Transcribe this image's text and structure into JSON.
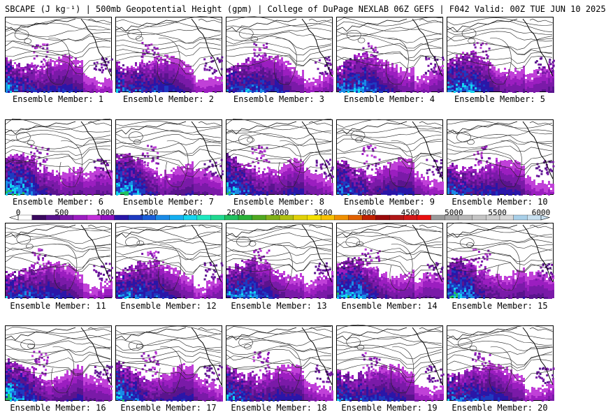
{
  "header": {
    "title": "SBCAPE (J kg⁻¹) | 500mb Geopotential Height (gpm) | College of DuPage NEXLAB 06Z GEFS | F042 Valid: 00Z TUE JUN 10 2025"
  },
  "colorbar": {
    "ticks": [
      "0",
      "500",
      "1000",
      "1500",
      "2000",
      "2500",
      "3000",
      "3500",
      "4000",
      "4500",
      "5000",
      "5500",
      "6000"
    ],
    "colors": [
      "#ffffff",
      "#3a0a5e",
      "#5a148e",
      "#7a1aa8",
      "#9b1ec0",
      "#c030d8",
      "#9010c0",
      "#2a16a8",
      "#1e3ac0",
      "#1a5ed8",
      "#1a8ae6",
      "#14aef0",
      "#14d4f0",
      "#1ee8c0",
      "#20d890",
      "#20c060",
      "#28b038",
      "#50a820",
      "#80b018",
      "#b0c010",
      "#e0d008",
      "#f4e000",
      "#f8c000",
      "#f09000",
      "#e06000",
      "#c02000",
      "#9a0a0a",
      "#b01818",
      "#d01818",
      "#e81010",
      "#9a9a9a",
      "#aaaaaa",
      "#b8b8b8",
      "#c4c4c4",
      "#cfcfcf",
      "#d8d8d8",
      "#a8cfe8",
      "#c8e0f0"
    ],
    "field_palette": [
      "#c040d8",
      "#9b1ec0",
      "#7a1aa8",
      "#5a148e",
      "#2a16a8",
      "#1e3ac0",
      "#1a8ae6",
      "#14d4f0",
      "#20c060"
    ]
  },
  "members": [
    {
      "label": "Ensemble Member: 1"
    },
    {
      "label": "Ensemble Member: 2"
    },
    {
      "label": "Ensemble Member: 3"
    },
    {
      "label": "Ensemble Member: 4"
    },
    {
      "label": "Ensemble Member: 5"
    },
    {
      "label": "Ensemble Member: 6"
    },
    {
      "label": "Ensemble Member: 7"
    },
    {
      "label": "Ensemble Member: 8"
    },
    {
      "label": "Ensemble Member: 9"
    },
    {
      "label": "Ensemble Member: 10"
    },
    {
      "label": "Ensemble Member: 11"
    },
    {
      "label": "Ensemble Member: 12"
    },
    {
      "label": "Ensemble Member: 13"
    },
    {
      "label": "Ensemble Member: 14"
    },
    {
      "label": "Ensemble Member: 15"
    },
    {
      "label": "Ensemble Member: 16"
    },
    {
      "label": "Ensemble Member: 17"
    },
    {
      "label": "Ensemble Member: 18"
    },
    {
      "label": "Ensemble Member: 19"
    },
    {
      "label": "Ensemble Member: 20"
    }
  ]
}
